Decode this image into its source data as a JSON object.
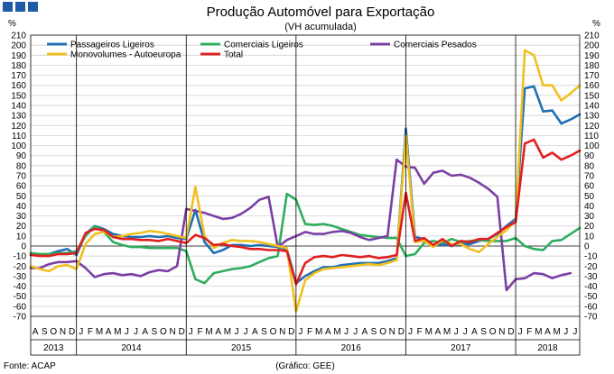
{
  "header": {
    "title": "Produção Automóvel para Exportação",
    "subtitle": "(VH acumulada)"
  },
  "footer": {
    "source": "Fonte: ACAP",
    "credit": "(Gráfico: GEE)"
  },
  "chart_data": {
    "type": "line",
    "y_unit_left": "%",
    "y_unit_right": "%",
    "ylim": [
      -70,
      210
    ],
    "ystep": 10,
    "grid": true,
    "legend_position": "top-left",
    "month_labels": [
      "A",
      "S",
      "O",
      "N",
      "D",
      "J",
      "F",
      "M",
      "A",
      "M",
      "J",
      "J",
      "A",
      "S",
      "O",
      "N",
      "D",
      "J",
      "F",
      "M",
      "A",
      "M",
      "J",
      "J",
      "A",
      "S",
      "O",
      "N",
      "D",
      "J",
      "F",
      "M",
      "A",
      "M",
      "J",
      "J",
      "A",
      "S",
      "O",
      "N",
      "D",
      "J",
      "F",
      "M",
      "A",
      "M",
      "J",
      "J",
      "A",
      "S",
      "O",
      "N",
      "D",
      "J",
      "F",
      "M",
      "A",
      "M",
      "J",
      "J"
    ],
    "years": [
      {
        "label": "2013",
        "start": 0,
        "end": 4
      },
      {
        "label": "2014",
        "start": 5,
        "end": 16
      },
      {
        "label": "2015",
        "start": 17,
        "end": 28
      },
      {
        "label": "2016",
        "start": 29,
        "end": 40
      },
      {
        "label": "2017",
        "start": 41,
        "end": 52
      },
      {
        "label": "2018",
        "start": 53,
        "end": 59
      }
    ],
    "series": [
      {
        "name": "Passageiros Ligeiros",
        "color": "#1f6fb5",
        "values": [
          -8,
          -9,
          -8,
          -5,
          -3,
          -9,
          12,
          20,
          17,
          12,
          10,
          9,
          9,
          10,
          9,
          10,
          8,
          7,
          36,
          4,
          -7,
          -4,
          1,
          1,
          0,
          1,
          0,
          -1,
          -3,
          -37,
          -30,
          -25,
          -21,
          -21,
          -19,
          -18,
          -17,
          -17,
          -17,
          -15,
          -12,
          117,
          9,
          7,
          0,
          2,
          0,
          2,
          2,
          5,
          7,
          12,
          20,
          27,
          157,
          159,
          134,
          135,
          122,
          126,
          131
        ]
      },
      {
        "name": "Comerciais Ligeiros",
        "color": "#2fad5e",
        "values": [
          -7,
          -8,
          -8,
          -7,
          -7,
          -5,
          10,
          20,
          14,
          4,
          1,
          -1,
          -1,
          -2,
          -2,
          -2,
          -2,
          -5,
          -33,
          -37,
          -27,
          -25,
          -23,
          -22,
          -20,
          -16,
          -12,
          -10,
          52,
          46,
          22,
          21,
          22,
          20,
          17,
          14,
          11,
          10,
          9,
          8,
          8,
          -10,
          -8,
          3,
          5,
          3,
          7,
          4,
          5,
          6,
          5,
          5,
          5,
          8,
          0,
          -3,
          -4,
          5,
          6,
          12,
          18
        ]
      },
      {
        "name": "Comerciais Pesados",
        "color": "#7b3fa4",
        "values": [
          -22,
          -22,
          -18,
          -16,
          -16,
          -15,
          -22,
          -31,
          -28,
          -27,
          -29,
          -28,
          -30,
          -26,
          -24,
          -25,
          -20,
          37,
          35,
          33,
          30,
          27,
          28,
          32,
          38,
          46,
          49,
          -1,
          6,
          10,
          14,
          12,
          12,
          14,
          15,
          13,
          9,
          6,
          8,
          10,
          86,
          79,
          78,
          62,
          73,
          75,
          70,
          71,
          68,
          63,
          57,
          49,
          -44,
          -33,
          -32,
          -27,
          -28,
          -32,
          -29,
          -27
        ]
      },
      {
        "name": "Monovolumes - Autoeuropa",
        "color": "#f0c020",
        "values": [
          -20,
          -23,
          -25,
          -20,
          -19,
          -23,
          2,
          12,
          14,
          9,
          10,
          12,
          13,
          15,
          14,
          12,
          10,
          8,
          59,
          10,
          -2,
          3,
          6,
          5,
          5,
          4,
          2,
          0,
          -2,
          -65,
          -34,
          -27,
          -23,
          -22,
          -21,
          -20,
          -19,
          -18,
          -19,
          -17,
          -14,
          110,
          4,
          5,
          -1,
          6,
          2,
          2,
          -3,
          -6,
          2,
          9,
          16,
          25,
          195,
          190,
          160,
          160,
          145,
          152,
          160
        ]
      },
      {
        "name": "Total",
        "color": "#e02020",
        "values": [
          -9,
          -10,
          -10,
          -8,
          -8,
          -7,
          13,
          17,
          16,
          9,
          7,
          7,
          6,
          6,
          5,
          7,
          5,
          3,
          11,
          8,
          1,
          2,
          0,
          -1,
          -3,
          -3,
          -4,
          -4,
          -5,
          -38,
          -17,
          -11,
          -10,
          -11,
          -9,
          -10,
          -11,
          -10,
          -12,
          -11,
          -9,
          53,
          5,
          8,
          1,
          7,
          0,
          5,
          4,
          7,
          7,
          13,
          19,
          24,
          102,
          106,
          88,
          93,
          86,
          90,
          95
        ]
      }
    ]
  }
}
